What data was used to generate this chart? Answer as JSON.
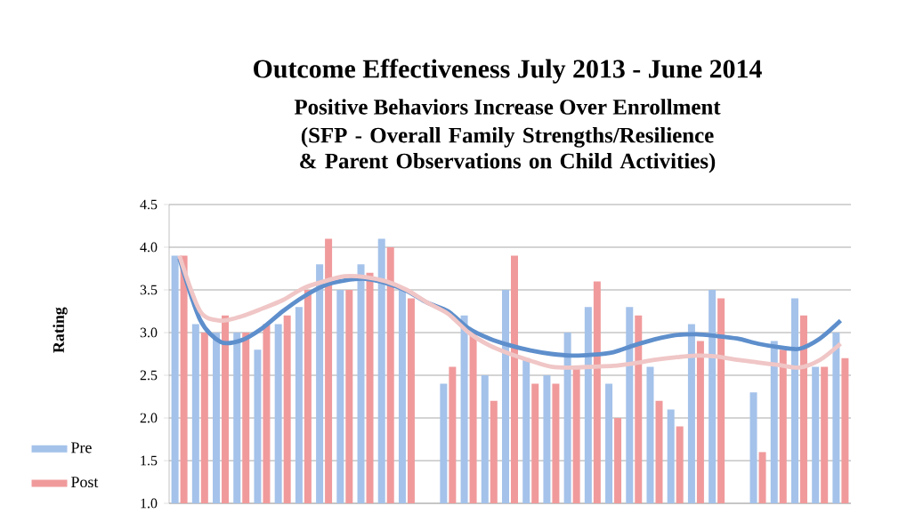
{
  "chart_data": {
    "type": "bar",
    "title": "Outcome Effectiveness July 2013 - June 2014",
    "subtitle": "Positive Behaviors Increase Over Enrollment",
    "annotations": [
      "(SFP - Overall Family Strengths/Resilience & Parent Observations on Child Activities)"
    ],
    "ylabel": "Rating",
    "categories": [
      null,
      null,
      null,
      null,
      null,
      null,
      null,
      null,
      null,
      null,
      null,
      null,
      null,
      null,
      null,
      null,
      null,
      null,
      null,
      null,
      null,
      null,
      null,
      null,
      null,
      null,
      null,
      null,
      null,
      null,
      null,
      null,
      null
    ],
    "series": [
      {
        "name": "Pre",
        "color": "#a4c2ea",
        "values": [
          3.9,
          3.1,
          3.0,
          3.0,
          2.8,
          3.1,
          3.3,
          3.8,
          3.5,
          3.8,
          4.1,
          3.5,
          null,
          2.4,
          3.2,
          2.5,
          3.5,
          2.7,
          2.5,
          3.0,
          3.3,
          2.4,
          3.3,
          2.6,
          2.1,
          3.1,
          3.5,
          null,
          2.3,
          2.9,
          3.4,
          2.6,
          3.0
        ]
      },
      {
        "name": "Post",
        "color": "#f09a9c",
        "values": [
          3.9,
          3.0,
          3.2,
          3.0,
          3.1,
          3.2,
          3.5,
          4.1,
          3.5,
          3.7,
          4.0,
          3.4,
          null,
          2.6,
          3.0,
          2.2,
          3.9,
          2.4,
          2.4,
          2.6,
          3.6,
          2.0,
          3.2,
          2.2,
          1.9,
          2.9,
          3.4,
          null,
          1.6,
          2.8,
          3.2,
          2.6,
          2.7
        ]
      },
      {
        "type": "line",
        "color": "#5e8fcc",
        "values": [
          3.87,
          3.15,
          2.89,
          2.91,
          3.05,
          3.25,
          3.42,
          3.55,
          3.61,
          3.63,
          3.58,
          3.49,
          3.35,
          3.25,
          3.05,
          2.93,
          2.85,
          2.79,
          2.75,
          2.73,
          2.74,
          2.77,
          2.85,
          2.92,
          2.97,
          2.98,
          2.96,
          2.93,
          2.87,
          2.83,
          2.81,
          2.93,
          3.14
        ]
      },
      {
        "type": "line",
        "color": "#f0c6c6",
        "values": [
          3.9,
          3.25,
          3.14,
          3.19,
          3.28,
          3.38,
          3.52,
          3.6,
          3.66,
          3.65,
          3.6,
          3.5,
          3.35,
          3.22,
          3.0,
          2.85,
          2.75,
          2.67,
          2.6,
          2.59,
          2.6,
          2.61,
          2.64,
          2.68,
          2.71,
          2.73,
          2.72,
          2.68,
          2.65,
          2.62,
          2.59,
          2.68,
          2.87
        ]
      }
    ],
    "ylim": [
      1.0,
      4.5
    ],
    "yticks": [
      {
        "value": 1.0,
        "label": "1.0"
      },
      {
        "value": 1.5,
        "label": "1.5"
      },
      {
        "value": 2.0,
        "label": "2.0"
      },
      {
        "value": 2.5,
        "label": "2.5"
      },
      {
        "value": 3.0,
        "label": "3.0"
      },
      {
        "value": 3.5,
        "label": "3.5"
      },
      {
        "value": 4.0,
        "label": "4.0"
      },
      {
        "value": 4.5,
        "label": "4.5"
      }
    ],
    "grid": "y",
    "legend": "left"
  }
}
